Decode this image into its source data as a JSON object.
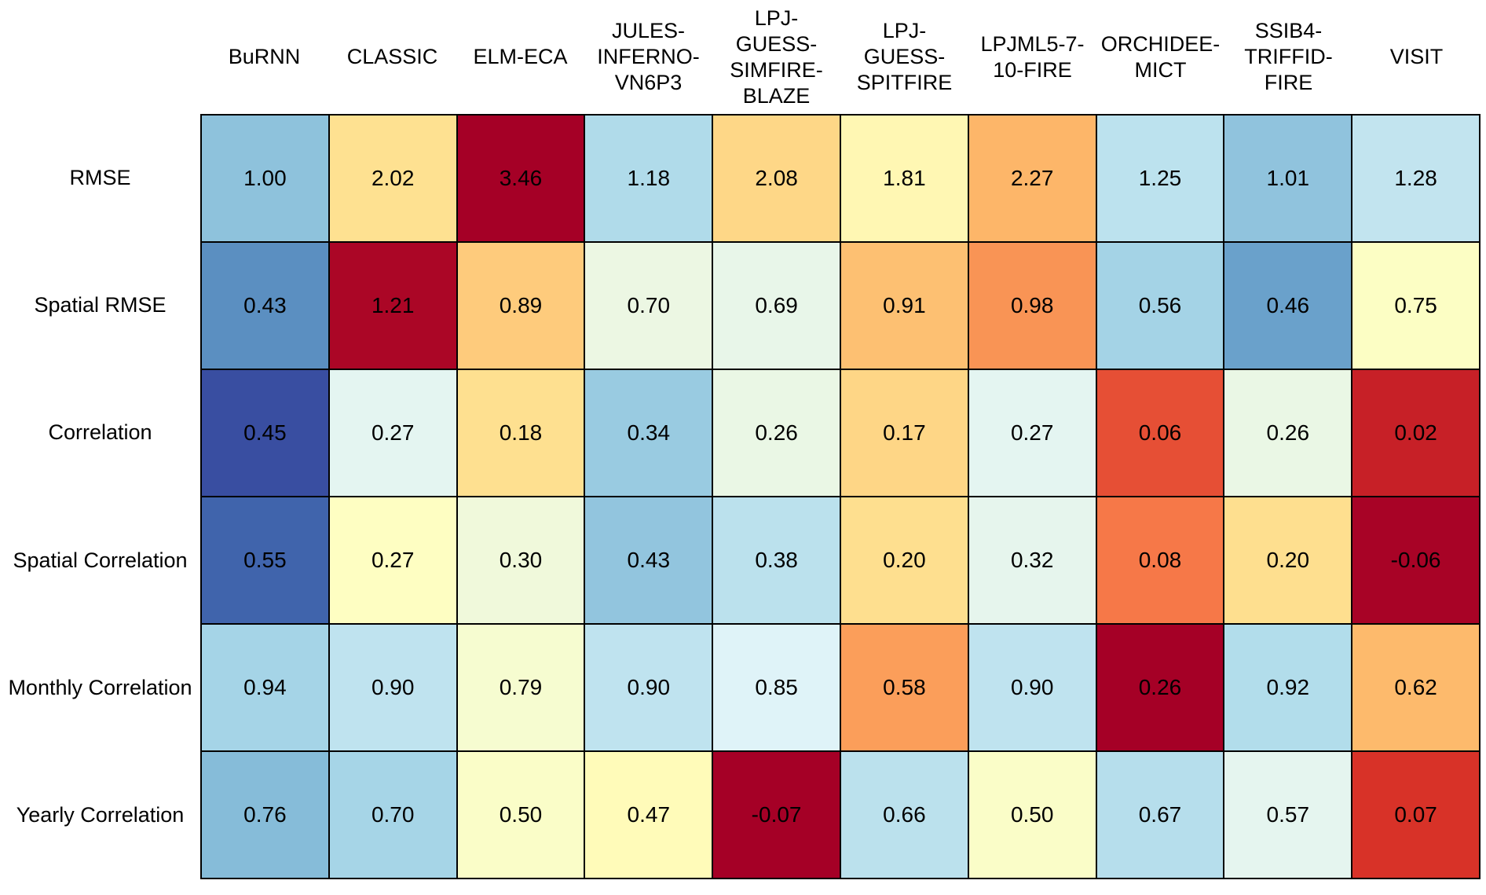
{
  "figure": {
    "background": "#ffffff",
    "text_color": "#000000",
    "grid_color": "#000000"
  },
  "chart_data": {
    "type": "heatmap",
    "title": "",
    "legend": "none",
    "gridlines": true,
    "value_format": "0.00",
    "columns": [
      "BuRNN",
      "CLASSIC",
      "ELM-ECA",
      "JULES-\nINFERNO-\nVN6P3",
      "LPJ-\nGUESS-\nSIMFIRE-\nBLAZE",
      "LPJ-\nGUESS-\nSPITFIRE",
      "LPJML5-7-\n10-FIRE",
      "ORCHIDEE-\nMICT",
      "SSIB4-\nTRIFFID-\nFIRE",
      "VISIT"
    ],
    "rows": [
      {
        "label": "RMSE",
        "lower_is_better": true,
        "values": [
          1.0,
          2.02,
          3.46,
          1.18,
          2.08,
          1.81,
          2.27,
          1.25,
          1.01,
          1.28
        ]
      },
      {
        "label": "Spatial RMSE",
        "lower_is_better": true,
        "values": [
          0.43,
          1.21,
          0.89,
          0.7,
          0.69,
          0.91,
          0.98,
          0.56,
          0.46,
          0.75
        ]
      },
      {
        "label": "Correlation",
        "lower_is_better": false,
        "values": [
          0.45,
          0.27,
          0.18,
          0.34,
          0.26,
          0.17,
          0.27,
          0.06,
          0.26,
          0.02
        ]
      },
      {
        "label": "Spatial Correlation",
        "lower_is_better": false,
        "values": [
          0.55,
          0.27,
          0.3,
          0.43,
          0.38,
          0.2,
          0.32,
          0.08,
          0.2,
          -0.06
        ]
      },
      {
        "label": "Monthly Correlation",
        "lower_is_better": false,
        "values": [
          0.94,
          0.9,
          0.79,
          0.9,
          0.85,
          0.58,
          0.9,
          0.26,
          0.92,
          0.62
        ]
      },
      {
        "label": "Yearly Correlation",
        "lower_is_better": false,
        "values": [
          0.76,
          0.7,
          0.5,
          0.47,
          -0.07,
          0.66,
          0.5,
          0.67,
          0.57,
          0.07
        ]
      }
    ],
    "colormap": {
      "name": "RdYlBu_r",
      "stops": [
        "#313695",
        "#4575b4",
        "#74add1",
        "#abd9e9",
        "#e0f3f8",
        "#ffffbf",
        "#fee090",
        "#fdae61",
        "#f46d43",
        "#d73027",
        "#a50026"
      ],
      "normalization": "row-zscore-2sigma"
    }
  }
}
